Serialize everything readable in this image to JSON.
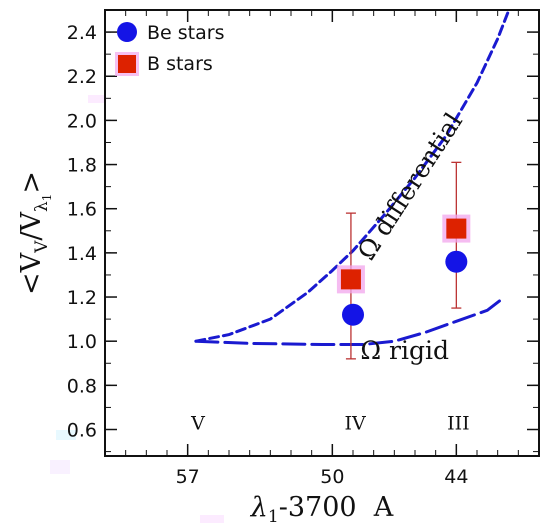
{
  "chart_data": {
    "type": "scatter",
    "xlabel_main": "λ",
    "xlabel_sub": "1",
    "xlabel_rest": "-3700  A",
    "ylabel": {
      "open": "<V",
      "sub1": "V",
      "mid": "/V",
      "sub2": "λ",
      "sub3": "1",
      "close": ">"
    },
    "x_tick_labels": [
      "57",
      "50",
      "44"
    ],
    "x_ticks": [
      57,
      50,
      44
    ],
    "xlim": [
      61,
      40
    ],
    "ylim": [
      0.48,
      2.5
    ],
    "y_ticks": [
      0.6,
      0.8,
      1.0,
      1.2,
      1.4,
      1.6,
      1.8,
      2.0,
      2.2,
      2.4
    ],
    "y_tick_labels": [
      "0.6",
      "0.8",
      "1.0",
      "1.2",
      "1.4",
      "1.6",
      "1.8",
      "2.0",
      "2.2",
      "2.4"
    ],
    "luminosity_classes": [
      {
        "label": "V",
        "x": 56.5,
        "y": 0.6
      },
      {
        "label": "IV",
        "x": 48.9,
        "y": 0.6
      },
      {
        "label": "III",
        "x": 43.9,
        "y": 0.6
      }
    ],
    "legend": {
      "position": "top-left",
      "be_label": "Be stars",
      "b_label": "B stars"
    },
    "series": [
      {
        "name": "Be stars",
        "marker": "circle",
        "color": "#1414e6",
        "points": [
          {
            "x": 49.0,
            "y": 1.12
          },
          {
            "x": 44.0,
            "y": 1.36
          }
        ]
      },
      {
        "name": "B stars",
        "marker": "square",
        "color": "#dd2200",
        "points": [
          {
            "x": 49.1,
            "y": 1.28,
            "err_low": 0.36,
            "err_high": 0.3
          },
          {
            "x": 44.0,
            "y": 1.51,
            "err_low": 0.36,
            "err_high": 0.3
          }
        ]
      }
    ],
    "curves": [
      {
        "name": "Ω differential",
        "color": "#1a1ad0",
        "style": "short-dash",
        "points": [
          [
            56.6,
            1.0
          ],
          [
            55.0,
            1.03
          ],
          [
            53.0,
            1.1
          ],
          [
            51.2,
            1.22
          ],
          [
            50.0,
            1.32
          ],
          [
            49.0,
            1.41
          ],
          [
            47.5,
            1.57
          ],
          [
            46.0,
            1.74
          ],
          [
            44.5,
            1.93
          ],
          [
            43.0,
            2.17
          ],
          [
            42.0,
            2.37
          ],
          [
            41.5,
            2.49
          ]
        ]
      },
      {
        "name": "Ω rigid",
        "color": "#1a1ad0",
        "style": "long-dash",
        "points": [
          [
            56.6,
            1.0
          ],
          [
            54.0,
            0.99
          ],
          [
            50.5,
            0.985
          ],
          [
            48.5,
            0.985
          ],
          [
            47.0,
            1.0
          ],
          [
            45.5,
            1.04
          ],
          [
            44.0,
            1.09
          ],
          [
            42.5,
            1.14
          ],
          [
            41.8,
            1.19
          ]
        ]
      }
    ],
    "curve_labels": [
      {
        "name": "Ω differential",
        "text": "Ω differential",
        "x": 45.9,
        "y": 1.68
      },
      {
        "name": "Ω rigid",
        "text": "Ω rigid",
        "x": 46.5,
        "y": 0.92
      }
    ]
  }
}
